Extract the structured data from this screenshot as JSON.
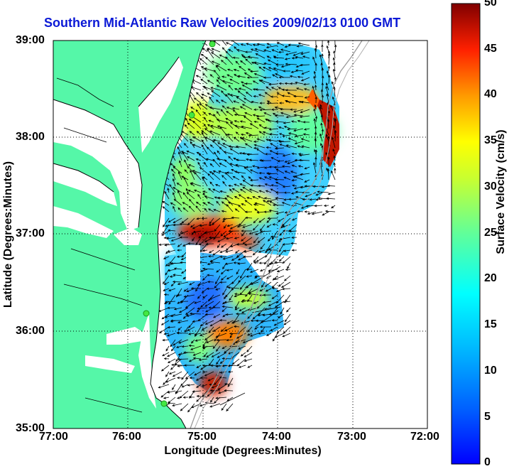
{
  "title": "Southern Mid-Atlantic Raw Velocities 2009/02/13 0100 GMT",
  "y_axis": {
    "title": "Latitude (Degrees:Minutes)",
    "ticks": [
      "39:00",
      "38:00",
      "37:00",
      "36:00",
      "35:00"
    ]
  },
  "x_axis": {
    "title": "Longitude (Degrees:Minutes)",
    "ticks": [
      "77:00",
      "76:00",
      "75:00",
      "74:00",
      "73:00",
      "72:00"
    ]
  },
  "colorbar": {
    "title": "Surface Velocity (cm/s)",
    "ticks": [
      "0",
      "5",
      "10",
      "15",
      "20",
      "25",
      "30",
      "35",
      "40",
      "45",
      "50"
    ],
    "min": 0,
    "max": 50
  },
  "colors": {
    "land": "#55f7a8",
    "title": "#0b19d6",
    "station": "#44e844"
  }
}
